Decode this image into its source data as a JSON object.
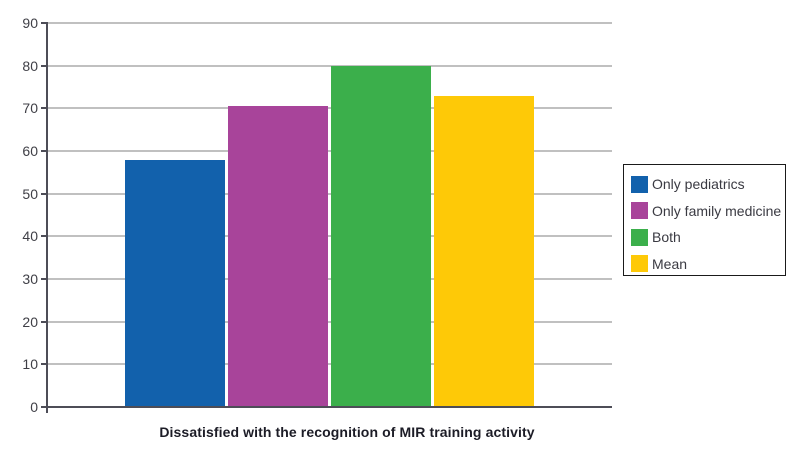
{
  "chart_data": {
    "type": "bar",
    "title": "",
    "xlabel": "Dissatisfied with the recognition of MIR training activity",
    "ylabel": "",
    "ylim": [
      0,
      90
    ],
    "yticks": [
      0,
      10,
      20,
      30,
      40,
      50,
      60,
      70,
      80,
      90
    ],
    "grid": true,
    "legend_position": "right",
    "categories": [
      "Dissatisfied with the recognition of MIR training activity"
    ],
    "series": [
      {
        "name": "Only pediatrics",
        "color": "#1261AC",
        "values": [
          58
        ]
      },
      {
        "name": "Only family medicine",
        "color": "#A8449A",
        "values": [
          70.5
        ]
      },
      {
        "name": "Both",
        "color": "#3BAF4B",
        "values": [
          80
        ]
      },
      {
        "name": "Mean",
        "color": "#FEC907",
        "values": [
          73
        ]
      }
    ],
    "colors": {
      "gridline": "#808080",
      "axis": "#4d4d57",
      "tick_label": "#3f3f46",
      "title_text": "#1c1c26",
      "legend_border": "#1a1a1a"
    }
  }
}
